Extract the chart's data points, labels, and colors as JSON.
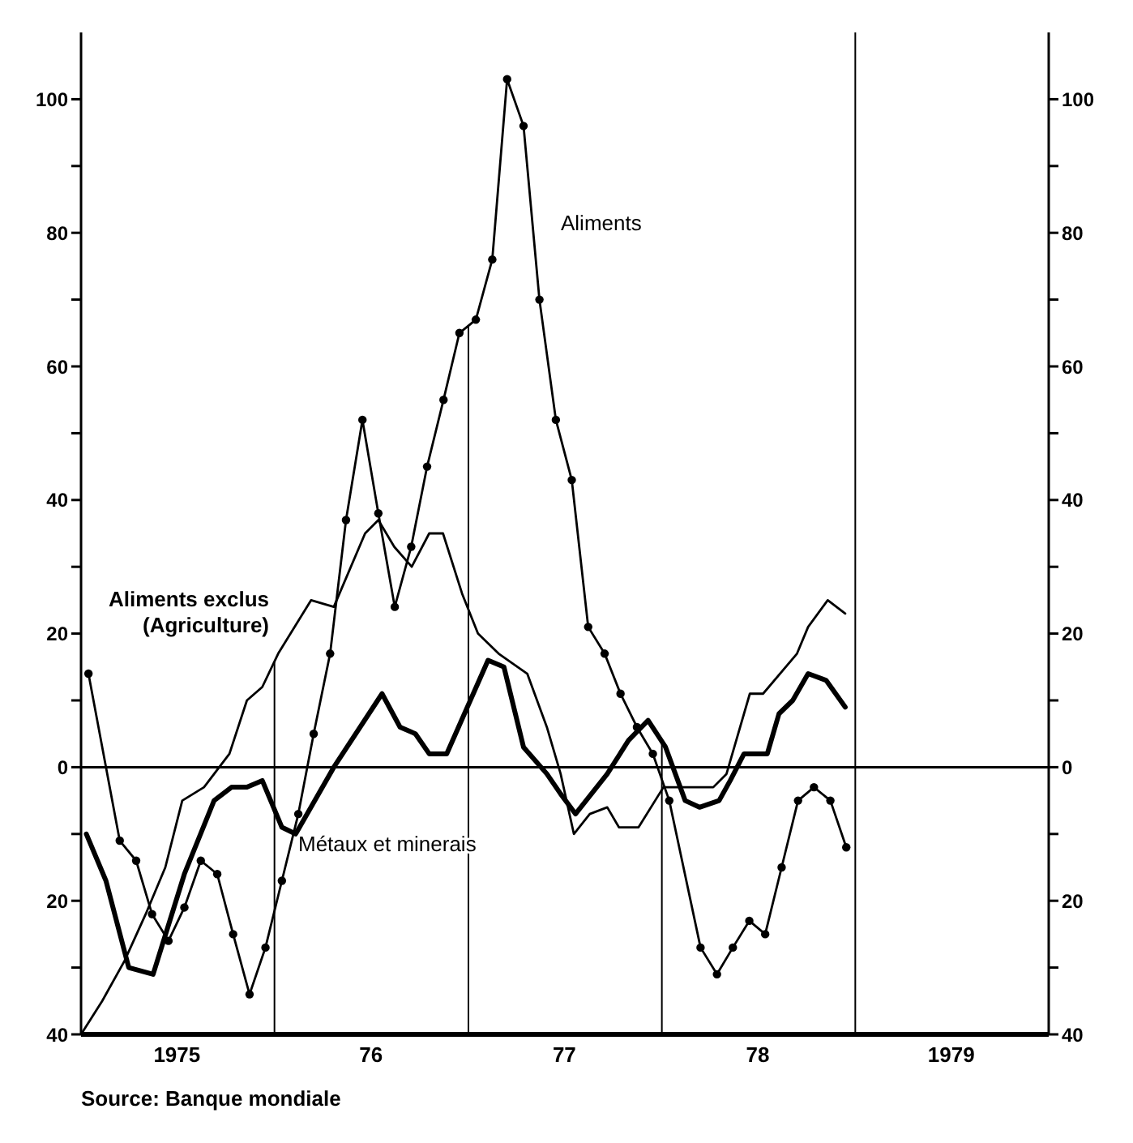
{
  "chart_data": {
    "type": "line",
    "xlim": [
      "1975-01-01",
      "1980-01-01"
    ],
    "ylim": [
      -40,
      110
    ],
    "y2lim": [
      -40,
      110
    ],
    "xticks": [
      {
        "value": "1975-07-01",
        "label": "1975"
      },
      {
        "value": "1976-07-01",
        "label": "76"
      },
      {
        "value": "1977-07-01",
        "label": "77"
      },
      {
        "value": "1978-07-01",
        "label": "78"
      },
      {
        "value": "1979-07-01",
        "label": "1979"
      }
    ],
    "yticks": [
      {
        "value": -40,
        "label": "40"
      },
      {
        "value": -30,
        "label": null
      },
      {
        "value": -20,
        "label": "20"
      },
      {
        "value": -10,
        "label": null
      },
      0,
      {
        "value": 10,
        "label": null
      },
      20,
      {
        "value": 30,
        "label": null
      },
      40,
      {
        "value": 50,
        "label": null
      },
      60,
      {
        "value": 70,
        "label": null
      },
      80,
      {
        "value": 90,
        "label": null
      },
      100
    ],
    "y2ticks": [
      {
        "value": -40,
        "label": "40"
      },
      {
        "value": -30,
        "label": null
      },
      {
        "value": -20,
        "label": "20"
      },
      {
        "value": -10,
        "label": null
      },
      0,
      {
        "value": 10,
        "label": null
      },
      20,
      {
        "value": 30,
        "label": null
      },
      40,
      {
        "value": 50,
        "label": null
      },
      60,
      {
        "value": 70,
        "label": null
      },
      80,
      {
        "value": 90,
        "label": null
      },
      100
    ],
    "ref_lines": [
      {
        "axis": "y",
        "value": 0
      },
      {
        "axis": "x",
        "value": "1976-01-01"
      },
      {
        "axis": "x",
        "value": "1977-01-01"
      },
      {
        "axis": "x",
        "value": "1978-01-01"
      },
      {
        "axis": "x",
        "value": "1979-01-01"
      }
    ],
    "annotations": [
      "Source: Banque mondiale"
    ],
    "series": [
      {
        "name": "Aliments",
        "color": "#000000",
        "marker": "circle",
        "x": [
          "1975-01-15",
          "1975-03-15",
          "1975-04-15",
          "1975-05-15",
          "1975-06-15",
          "1975-07-15",
          "1975-08-15",
          "1975-09-15",
          "1975-10-15",
          "1975-11-15",
          "1975-12-15",
          "1976-01-15",
          "1976-02-15",
          "1976-03-15",
          "1976-04-15",
          "1976-05-15",
          "1976-06-15",
          "1976-07-15",
          "1976-08-15",
          "1976-09-15",
          "1976-10-15",
          "1976-11-15",
          "1976-12-15",
          "1977-01-15",
          "1977-02-15",
          "1977-03-15",
          "1977-04-15",
          "1977-05-15",
          "1977-06-15",
          "1977-07-15",
          "1977-08-15",
          "1977-09-15",
          "1977-10-15",
          "1977-11-15",
          "1977-12-15",
          "1978-01-15",
          "1978-03-15",
          "1978-04-15",
          "1978-05-15",
          "1978-06-15",
          "1978-07-15",
          "1978-08-15",
          "1978-09-15",
          "1978-10-15",
          "1978-11-15",
          "1978-12-15"
        ],
        "values": [
          14,
          -11,
          -14,
          -22,
          -26,
          -21,
          -14,
          -16,
          -25,
          -34,
          -27,
          -17,
          -7,
          5,
          17,
          37,
          52,
          38,
          24,
          33,
          45,
          55,
          65,
          67,
          76,
          103,
          96,
          70,
          52,
          43,
          21,
          17,
          11,
          6,
          2,
          -5,
          -27,
          -31,
          -27,
          -23,
          -25,
          -15,
          -5,
          -3,
          -5,
          -12
        ]
      },
      {
        "name": "Aliments exclus (Agriculture)",
        "color": "#000000",
        "marker": "none",
        "x": [
          "1975-01-01",
          "1975-02-10",
          "1975-03-24",
          "1975-05-03",
          "1975-06-09",
          "1975-07-11",
          "1975-08-21",
          "1975-10-08",
          "1975-11-10",
          "1975-12-09",
          "1976-01-08",
          "1976-03-10",
          "1976-04-22",
          "1976-06-20",
          "1976-07-15",
          "1976-08-14",
          "1976-09-16",
          "1976-10-19",
          "1976-11-14",
          "1976-12-20",
          "1977-01-19",
          "1977-02-27",
          "1977-04-22",
          "1977-05-29",
          "1977-06-24",
          "1977-07-19",
          "1977-08-18",
          "1977-09-20",
          "1977-10-12",
          "1977-11-18",
          "1978-01-04",
          "1978-01-22",
          "1978-04-08",
          "1978-05-03",
          "1978-06-16",
          "1978-07-11",
          "1978-09-13",
          "1978-10-04",
          "1978-11-10",
          "1978-12-13"
        ],
        "values": [
          -40,
          -35,
          -29,
          -22,
          -15,
          -5,
          -3,
          2,
          10,
          12,
          17,
          25,
          24,
          35,
          37,
          33,
          30,
          35,
          35,
          26,
          20,
          17,
          14,
          6,
          -1,
          -10,
          -7,
          -6,
          -9,
          -9,
          -3,
          -3,
          -3,
          -1,
          11,
          11,
          17,
          21,
          25,
          23
        ]
      },
      {
        "name": "Métaux et minerais",
        "color": "#000000",
        "marker": "none",
        "x": [
          "1975-01-11",
          "1975-02-17",
          "1975-04-01",
          "1975-05-17",
          "1975-07-15",
          "1975-09-09",
          "1975-10-12",
          "1975-11-10",
          "1975-12-09",
          "1976-01-15",
          "1976-02-10",
          "1976-04-22",
          "1976-07-22",
          "1976-08-25",
          "1976-09-23",
          "1976-10-19",
          "1976-11-21",
          "1977-02-07",
          "1977-03-09",
          "1977-04-15",
          "1977-05-29",
          "1977-06-24",
          "1977-07-22",
          "1977-09-20",
          "1977-10-30",
          "1977-12-06",
          "1978-01-08",
          "1978-02-14",
          "1978-03-13",
          "1978-04-19",
          "1978-05-10",
          "1978-06-05",
          "1978-07-19",
          "1978-08-10",
          "1978-09-05",
          "1978-10-04",
          "1978-11-07",
          "1978-12-13"
        ],
        "values": [
          -10,
          -17,
          -30,
          -31,
          -16,
          -5,
          -3,
          -3,
          -2,
          -9,
          -10,
          0,
          11,
          6,
          5,
          2,
          2,
          16,
          15,
          3,
          -1,
          -4,
          -7,
          -1,
          4,
          7,
          3,
          -5,
          -6,
          -5,
          -2,
          2,
          2,
          8,
          10,
          14,
          13,
          9
        ]
      }
    ]
  }
}
